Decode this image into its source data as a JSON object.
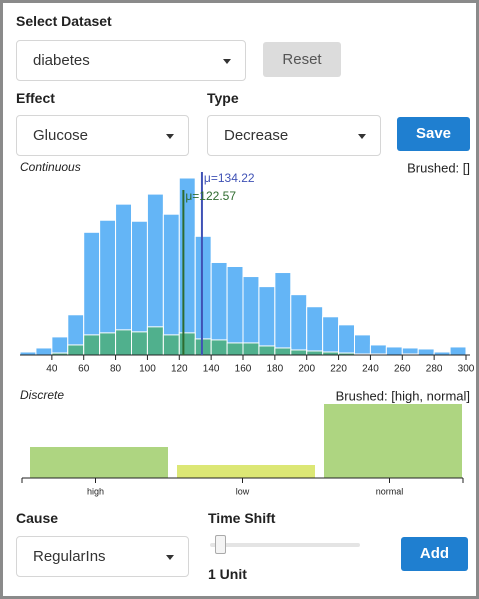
{
  "dataset": {
    "label": "Select Dataset",
    "value": "diabetes"
  },
  "reset_button": "Reset",
  "effect": {
    "label": "Effect",
    "value": "Glucose"
  },
  "type_select": {
    "label": "Type",
    "value": "Decrease"
  },
  "save_button": "Save",
  "chart_data": [
    {
      "type": "histogram",
      "title": "Continuous",
      "brushed_label": "Brushed: []",
      "bins": [
        20,
        30,
        40,
        50,
        60,
        70,
        80,
        90,
        100,
        110,
        120,
        130,
        140,
        150,
        160,
        170,
        180,
        190,
        200,
        210,
        220,
        230,
        240,
        250,
        260,
        270,
        280,
        290,
        300
      ],
      "series": [
        {
          "color": "#64b5f6",
          "values": [
            3,
            7,
            18,
            40,
            122,
            134,
            150,
            133,
            160,
            140,
            176,
            118,
            92,
            88,
            78,
            68,
            82,
            60,
            48,
            38,
            30,
            20,
            10,
            8,
            7,
            6,
            3,
            8
          ]
        },
        {
          "color": "#4caf7a",
          "values": [
            0,
            0,
            2,
            10,
            20,
            22,
            25,
            23,
            28,
            20,
            22,
            16,
            15,
            12,
            12,
            9,
            7,
            5,
            4,
            3,
            2,
            1,
            1,
            0,
            1,
            0,
            0,
            0
          ]
        }
      ],
      "xlim": [
        20,
        300
      ],
      "xticks": [
        40,
        60,
        80,
        100,
        120,
        140,
        160,
        180,
        200,
        220,
        240,
        260,
        280,
        300
      ],
      "annotations": [
        {
          "label": "μ=134.22",
          "x": 134.22,
          "color": "#3f51b5"
        },
        {
          "label": "μ=122.57",
          "x": 122.57,
          "color": "#2e6b2e"
        }
      ]
    },
    {
      "type": "bar",
      "title": "Discrete",
      "brushed_label": "Brushed: [high, normal]",
      "categories": [
        "high",
        "low",
        "normal"
      ],
      "values": [
        31,
        13,
        74
      ],
      "colors": [
        "#aed581",
        "#dce775",
        "#aed581"
      ]
    }
  ],
  "cause": {
    "label": "Cause",
    "value": "RegularIns"
  },
  "time_shift": {
    "label": "Time Shift",
    "value_label": "1 Unit"
  },
  "add_button": "Add"
}
